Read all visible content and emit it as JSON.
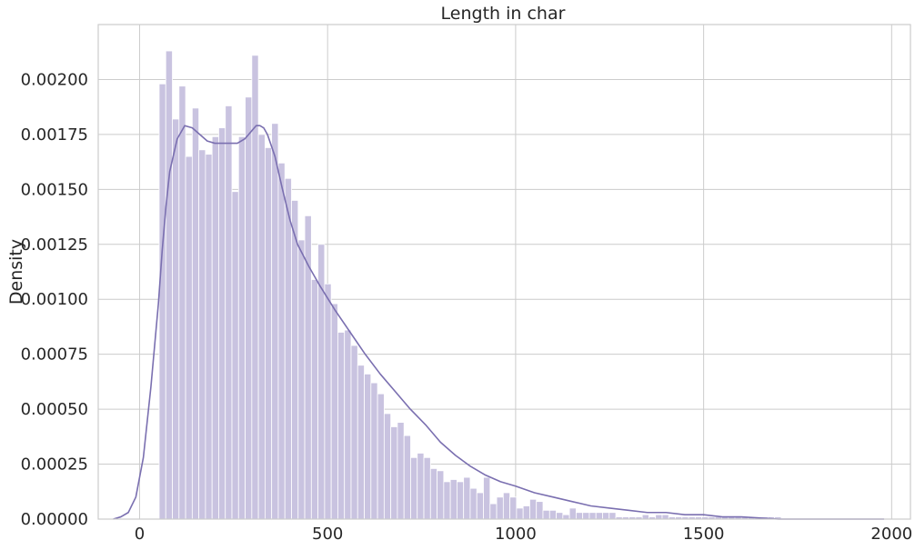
{
  "chart_data": {
    "type": "histogram",
    "title": "Length in char",
    "xlabel": "",
    "ylabel": "Density",
    "xlim": [
      -110,
      2050
    ],
    "ylim": [
      0,
      0.00225
    ],
    "x_ticks": [
      0,
      500,
      1000,
      1500,
      2000
    ],
    "x_tick_labels": [
      "0",
      "500",
      "1000",
      "1500",
      "2000"
    ],
    "y_ticks": [
      0,
      0.00025,
      0.0005,
      0.00075,
      0.001,
      0.00125,
      0.0015,
      0.00175,
      0.002
    ],
    "y_tick_labels": [
      "0.00000",
      "0.00025",
      "0.00050",
      "0.00075",
      "0.00100",
      "0.00125",
      "0.00150",
      "0.00175",
      "0.00200"
    ],
    "grid": true,
    "bar_color": "#c9c3e0",
    "kde_color": "#7a6fb0",
    "bin_start": 52,
    "bin_width": 17.6,
    "densities": [
      0.00198,
      0.00213,
      0.00182,
      0.00197,
      0.00165,
      0.00187,
      0.00168,
      0.00166,
      0.00174,
      0.00178,
      0.00188,
      0.00149,
      0.00174,
      0.00192,
      0.00211,
      0.00175,
      0.00169,
      0.0018,
      0.00162,
      0.00155,
      0.00145,
      0.00127,
      0.00138,
      0.00109,
      0.00125,
      0.00107,
      0.00098,
      0.00085,
      0.00086,
      0.00079,
      0.0007,
      0.00066,
      0.00062,
      0.00057,
      0.00048,
      0.00042,
      0.00044,
      0.00038,
      0.00028,
      0.0003,
      0.00028,
      0.00023,
      0.00022,
      0.00017,
      0.00018,
      0.00017,
      0.00019,
      0.00014,
      0.00012,
      0.00019,
      7e-05,
      0.0001,
      0.00012,
      0.0001,
      5e-05,
      6e-05,
      9e-05,
      8e-05,
      4e-05,
      4e-05,
      3e-05,
      2e-05,
      5e-05,
      3e-05,
      3e-05,
      3e-05,
      3e-05,
      3e-05,
      3e-05,
      1e-05,
      1e-05,
      1e-05,
      1e-05,
      2e-05,
      1e-05,
      2e-05,
      2e-05,
      1e-05,
      1e-05,
      1e-05,
      1e-05,
      1e-05,
      1e-05,
      1e-05,
      1e-05,
      1e-05,
      1e-05,
      1e-05,
      1e-05,
      1e-05,
      1e-05,
      1e-05,
      1e-05,
      1e-05
    ],
    "kde": {
      "x": [
        -70,
        -50,
        -30,
        -10,
        10,
        30,
        50,
        60,
        70,
        80,
        100,
        120,
        140,
        160,
        180,
        200,
        220,
        240,
        260,
        280,
        300,
        310,
        320,
        330,
        340,
        360,
        380,
        400,
        420,
        450,
        480,
        520,
        560,
        600,
        640,
        680,
        720,
        760,
        800,
        840,
        880,
        920,
        960,
        1000,
        1050,
        1100,
        1150,
        1200,
        1250,
        1300,
        1350,
        1400,
        1450,
        1500,
        1550,
        1600,
        1700,
        1800,
        1900,
        1980
      ],
      "y": [
        0,
        1e-05,
        3e-05,
        0.0001,
        0.00028,
        0.0006,
        0.00098,
        0.00122,
        0.00142,
        0.00158,
        0.00173,
        0.00179,
        0.00178,
        0.00175,
        0.00172,
        0.00171,
        0.00171,
        0.00171,
        0.00171,
        0.00173,
        0.00177,
        0.00179,
        0.00179,
        0.00178,
        0.00175,
        0.00165,
        0.0015,
        0.00136,
        0.00125,
        0.00115,
        0.00106,
        0.00095,
        0.00085,
        0.00075,
        0.00066,
        0.00058,
        0.0005,
        0.00043,
        0.00035,
        0.00029,
        0.00024,
        0.0002,
        0.00017,
        0.00015,
        0.00012,
        0.0001,
        8e-05,
        6e-05,
        5e-05,
        4e-05,
        3e-05,
        3e-05,
        2e-05,
        2e-05,
        1e-05,
        1e-05,
        0,
        0,
        0,
        0
      ]
    }
  }
}
